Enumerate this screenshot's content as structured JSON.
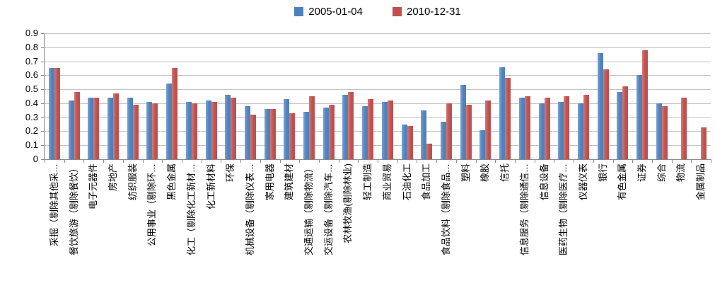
{
  "chart_data": {
    "type": "bar",
    "title": "",
    "xlabel": "",
    "ylabel": "",
    "ylim": [
      0,
      0.9
    ],
    "ytick_step": 0.1,
    "yticks": [
      "0",
      "0.1",
      "0.2",
      "0.3",
      "0.4",
      "0.5",
      "0.6",
      "0.7",
      "0.8",
      "0.9"
    ],
    "grid": true,
    "legend_position": "top-center",
    "categories": [
      "采掘（剔除其他采…",
      "餐饮旅游（剔除餐饮）",
      "电子元器件",
      "房地产",
      "纺织服装",
      "公用事业（剔除环…",
      "黑色金属",
      "化工（剔除化工新材…",
      "化工新材料",
      "环保",
      "机械设备（剔除仪表…",
      "家用电器",
      "建筑建材",
      "交通运输（剔除物流）",
      "交运设备（剔除汽车…",
      "农林牧渔(剔除林业)",
      "轻工制造",
      "商业贸易",
      "石油化工",
      "食品加工",
      "食品饮料（剔除食品…",
      "塑料",
      "橡胶",
      "信托",
      "信息服务（剔除通信…",
      "信息设备",
      "医药生物（剔除医疗…",
      "仪器仪表",
      "银行",
      "有色金属",
      "证券",
      "综合",
      "物流",
      "金属制品"
    ],
    "series": [
      {
        "name": "2005-01-04",
        "color": "#4F81BD",
        "values": [
          0.65,
          0.42,
          0.44,
          0.44,
          0.44,
          0.41,
          0.54,
          0.41,
          0.42,
          0.46,
          0.38,
          0.36,
          0.43,
          0.34,
          0.37,
          0.46,
          0.38,
          0.41,
          0.25,
          0.35,
          0.27,
          0.53,
          0.21,
          0.66,
          0.44,
          0.4,
          0.41,
          0.4,
          0.76,
          0.48,
          0.6,
          0.4,
          null,
          null
        ]
      },
      {
        "name": "2010-12-31",
        "color": "#C0504D",
        "values": [
          0.65,
          0.48,
          0.44,
          0.47,
          0.39,
          0.4,
          0.65,
          0.4,
          0.41,
          0.44,
          0.32,
          0.36,
          0.33,
          0.45,
          0.39,
          0.48,
          0.43,
          0.42,
          0.24,
          0.11,
          0.4,
          0.39,
          0.42,
          0.58,
          0.45,
          0.44,
          0.45,
          0.46,
          0.64,
          0.52,
          0.78,
          0.38,
          0.44,
          0.23
        ]
      }
    ]
  },
  "colors": {
    "background": "#FFFFFF",
    "gridline": "#C3C3C3",
    "axis": "#898989",
    "text": "#000000"
  }
}
